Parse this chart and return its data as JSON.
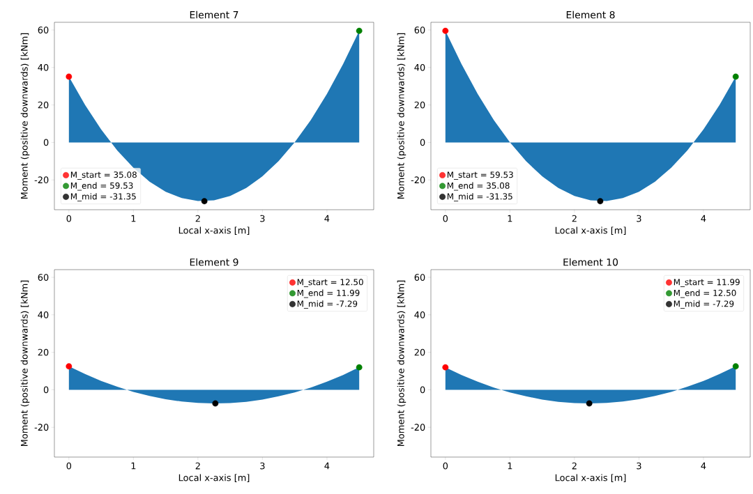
{
  "chart_data": [
    {
      "type": "area",
      "title": "Element 7",
      "xlabel": "Local x-axis [m]",
      "ylabel": "Moment (positive downwards) [kNm]",
      "xlim": [
        -0.225,
        4.725
      ],
      "ylim": [
        -35.9,
        64.1
      ],
      "xticks": [
        0,
        1,
        2,
        3,
        4
      ],
      "yticks": [
        -20,
        0,
        20,
        40,
        60
      ],
      "legend": "bottom left",
      "series": [
        {
          "color": "#1f77b4",
          "x": [
            0,
            0.25,
            0.5,
            0.75,
            1.0,
            1.25,
            1.5,
            1.75,
            2.0,
            2.25,
            2.5,
            2.75,
            3.0,
            3.25,
            3.5,
            3.75,
            4.0,
            4.25,
            4.5
          ],
          "values": [
            35.1,
            20.0,
            6.9,
            -4.3,
            -13.5,
            -20.9,
            -26.3,
            -29.7,
            -31.3,
            -30.9,
            -28.6,
            -24.3,
            -18.1,
            -10.0,
            0.1,
            12.0,
            25.9,
            41.8,
            59.5
          ]
        },
        {
          "type": "scatter",
          "marker": "circle",
          "name": "M_start = 35.08",
          "color": "#ff0000",
          "x": [
            0
          ],
          "values": [
            35.08
          ]
        },
        {
          "type": "scatter",
          "marker": "circle",
          "name": "M_end = 59.53",
          "color": "#008000",
          "x": [
            4.5
          ],
          "values": [
            59.53
          ]
        },
        {
          "type": "scatter",
          "marker": "circle",
          "name": "M_mid = -31.35",
          "color": "#000000",
          "x": [
            2.1
          ],
          "values": [
            -31.35
          ]
        }
      ]
    },
    {
      "type": "area",
      "title": "Element 8",
      "xlabel": "Local x-axis [m]",
      "ylabel": "Moment (positive downwards) [kNm]",
      "xlim": [
        -0.225,
        4.725
      ],
      "ylim": [
        -35.9,
        64.1
      ],
      "xticks": [
        0,
        1,
        2,
        3,
        4
      ],
      "yticks": [
        -20,
        0,
        20,
        40,
        60
      ],
      "legend": "bottom left",
      "series": [
        {
          "color": "#1f77b4",
          "x": [
            0,
            0.25,
            0.5,
            0.75,
            1.0,
            1.25,
            1.5,
            1.75,
            2.0,
            2.25,
            2.5,
            2.75,
            3.0,
            3.25,
            3.5,
            3.75,
            4.0,
            4.25,
            4.5
          ],
          "values": [
            59.5,
            41.8,
            25.9,
            12.0,
            0.1,
            -10.0,
            -18.1,
            -24.3,
            -28.6,
            -30.9,
            -31.3,
            -29.7,
            -26.3,
            -20.9,
            -13.5,
            -4.3,
            6.9,
            20.0,
            35.1
          ]
        },
        {
          "type": "scatter",
          "marker": "circle",
          "name": "M_start = 59.53",
          "color": "#ff0000",
          "x": [
            0
          ],
          "values": [
            59.53
          ]
        },
        {
          "type": "scatter",
          "marker": "circle",
          "name": "M_end = 35.08",
          "color": "#008000",
          "x": [
            4.5
          ],
          "values": [
            35.08
          ]
        },
        {
          "type": "scatter",
          "marker": "circle",
          "name": "M_mid = -31.35",
          "color": "#000000",
          "x": [
            2.4
          ],
          "values": [
            -31.35
          ]
        }
      ]
    },
    {
      "type": "area",
      "title": "Element 9",
      "xlabel": "Local x-axis [m]",
      "ylabel": "Moment (positive downwards) [kNm]",
      "xlim": [
        -0.225,
        4.725
      ],
      "ylim": [
        -35.9,
        64.1
      ],
      "xticks": [
        0,
        1,
        2,
        3,
        4
      ],
      "yticks": [
        -20,
        0,
        20,
        40,
        60
      ],
      "legend": "top right",
      "series": [
        {
          "color": "#1f77b4",
          "x": [
            0,
            0.25,
            0.5,
            0.75,
            1.0,
            1.25,
            1.5,
            1.75,
            2.0,
            2.25,
            2.5,
            2.75,
            3.0,
            3.25,
            3.5,
            3.75,
            4.0,
            4.25,
            4.5
          ],
          "values": [
            12.5,
            8.4,
            4.7,
            1.6,
            -1.1,
            -3.3,
            -5.0,
            -6.3,
            -7.0,
            -7.3,
            -7.1,
            -6.4,
            -5.2,
            -3.5,
            -1.4,
            1.2,
            4.3,
            7.9,
            12.0
          ]
        },
        {
          "type": "scatter",
          "marker": "circle",
          "name": "M_start = 12.50",
          "color": "#ff0000",
          "x": [
            0
          ],
          "values": [
            12.5
          ]
        },
        {
          "type": "scatter",
          "marker": "circle",
          "name": "M_end = 11.99",
          "color": "#008000",
          "x": [
            4.5
          ],
          "values": [
            11.99
          ]
        },
        {
          "type": "scatter",
          "marker": "circle",
          "name": "M_mid = -7.29",
          "color": "#000000",
          "x": [
            2.27
          ],
          "values": [
            -7.29
          ]
        }
      ]
    },
    {
      "type": "area",
      "title": "Element 10",
      "xlabel": "Local x-axis [m]",
      "ylabel": "Moment (positive downwards) [kNm]",
      "xlim": [
        -0.225,
        4.725
      ],
      "ylim": [
        -35.9,
        64.1
      ],
      "xticks": [
        0,
        1,
        2,
        3,
        4
      ],
      "yticks": [
        -20,
        0,
        20,
        40,
        60
      ],
      "legend": "top right",
      "series": [
        {
          "color": "#1f77b4",
          "x": [
            0,
            0.25,
            0.5,
            0.75,
            1.0,
            1.25,
            1.5,
            1.75,
            2.0,
            2.25,
            2.5,
            2.75,
            3.0,
            3.25,
            3.5,
            3.75,
            4.0,
            4.25,
            4.5
          ],
          "values": [
            12.0,
            7.9,
            4.3,
            1.2,
            -1.4,
            -3.5,
            -5.2,
            -6.4,
            -7.1,
            -7.3,
            -7.0,
            -6.3,
            -5.0,
            -3.3,
            -1.1,
            1.6,
            4.7,
            8.4,
            12.5
          ]
        },
        {
          "type": "scatter",
          "marker": "circle",
          "name": "M_start = 11.99",
          "color": "#ff0000",
          "x": [
            0
          ],
          "values": [
            11.99
          ]
        },
        {
          "type": "scatter",
          "marker": "circle",
          "name": "M_end = 12.50",
          "color": "#008000",
          "x": [
            4.5
          ],
          "values": [
            12.5
          ]
        },
        {
          "type": "scatter",
          "marker": "circle",
          "name": "M_mid = -7.29",
          "color": "#000000",
          "x": [
            2.23
          ],
          "values": [
            -7.29
          ]
        }
      ]
    }
  ]
}
